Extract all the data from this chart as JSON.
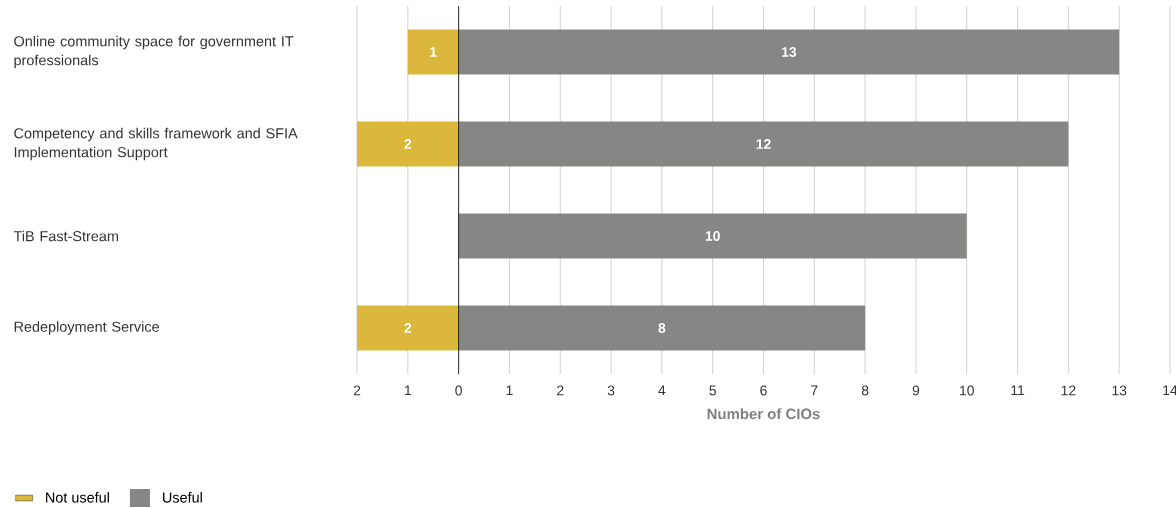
{
  "chart_data": {
    "type": "bar",
    "orientation": "horizontal",
    "categories": [
      "Online community space for government IT professionals",
      "Competency and skills framework and SFIA Implementation Support",
      "TiB Fast-Stream",
      "Redeployment Service"
    ],
    "series": [
      {
        "name": "Not useful",
        "color": "#dbb83b",
        "values": [
          1,
          2,
          null,
          2
        ],
        "base": [
          -1,
          -2,
          null,
          -2
        ],
        "value_labels": [
          "1",
          "2",
          null,
          "2"
        ]
      },
      {
        "name": "Useful",
        "color": "#868684",
        "values": [
          13,
          12,
          10,
          8
        ],
        "value_labels": [
          "13",
          "12",
          "10",
          "8"
        ]
      }
    ],
    "xlabel": "Number of CIOs",
    "xlim": [
      -2,
      14
    ],
    "xticks": [
      {
        "value": -2,
        "label": "2"
      },
      {
        "value": -1,
        "label": "1"
      },
      0,
      1,
      2,
      3,
      4,
      5,
      6,
      7,
      8,
      9,
      10,
      11,
      12,
      13,
      14
    ],
    "grid": "x",
    "legend": "bottom left"
  }
}
